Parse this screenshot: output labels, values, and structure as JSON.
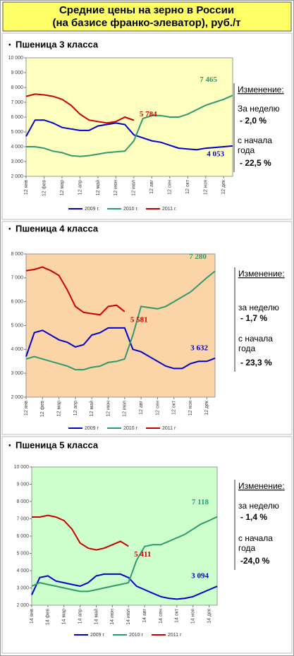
{
  "header": {
    "title": [
      "Средние цены на зерно в России",
      "(на базисе франко-элеватор), руб./т"
    ]
  },
  "chart_data": [
    {
      "type": "line",
      "title": "Пшеница 3 класса",
      "categories": [
        "12 янв",
        null,
        "12 фев",
        null,
        "12 мар",
        null,
        "12 апр",
        null,
        "12 май",
        null,
        "12 июн",
        null,
        "12 июл",
        null,
        "12 авг",
        null,
        "12 сен",
        null,
        "12 окт",
        null,
        "12 ноя",
        null,
        "12 дек",
        null
      ],
      "ylim": [
        2000,
        10000
      ],
      "yticks": [
        {
          "value": 2000,
          "label": "2 000"
        },
        {
          "value": 3000,
          "label": "3 000"
        },
        {
          "value": 4000,
          "label": "4 000"
        },
        {
          "value": 5000,
          "label": "5 000"
        },
        {
          "value": 6000,
          "label": "6 000"
        },
        {
          "value": 7000,
          "label": "7 000"
        },
        {
          "value": 8000,
          "label": "8 000"
        },
        {
          "value": 9000,
          "label": "9 000"
        },
        {
          "value": 10000,
          "label": "10 000"
        }
      ],
      "background": "#ffffc0",
      "series": [
        {
          "name": "2009 г.",
          "color": "#0000cc",
          "values": [
            4700,
            5800,
            5800,
            5600,
            5300,
            5200,
            5100,
            5100,
            5400,
            5500,
            5600,
            5500,
            4800,
            4600,
            4400,
            4300,
            4100,
            3900,
            3850,
            3800,
            3900,
            3950,
            4000,
            4053
          ],
          "end_label": "4 053"
        },
        {
          "name": "2010 г.",
          "color": "#2e9b6e",
          "values": [
            4000,
            4000,
            3900,
            3700,
            3600,
            3400,
            3350,
            3400,
            3500,
            3600,
            3650,
            3700,
            4400,
            5900,
            6100,
            6100,
            6000,
            6000,
            6200,
            6500,
            6800,
            7000,
            7200,
            7465
          ],
          "end_label": "7 465"
        },
        {
          "name": "2011 г.",
          "color": "#cc0000",
          "values": [
            7400,
            7550,
            7500,
            7400,
            7200,
            6800,
            6200,
            5800,
            5700,
            5600,
            5700,
            6000,
            5784,
            null,
            null,
            null,
            null,
            null,
            null,
            null,
            null,
            null,
            null,
            null
          ],
          "end_label": "5 784"
        }
      ],
      "note": {
        "heading": "Изменение:",
        "week_label": "За неделю",
        "week_value": "- 2,0  %",
        "ytd_label": [
          "с начала",
          "года"
        ],
        "ytd_value": "- 22,5 %"
      }
    },
    {
      "type": "line",
      "title": "Пшеница 4 класса",
      "categories": [
        "12 янв",
        null,
        "12 фев",
        null,
        "12 мар",
        null,
        "12 апр",
        null,
        "12 май",
        null,
        "12 июн",
        null,
        "12 июл",
        null,
        "12 авг",
        null,
        "12 сен",
        null,
        "12 окт",
        null,
        "12 ноя",
        null,
        "12 дек",
        null
      ],
      "ylim": [
        2000,
        8000
      ],
      "yticks": [
        {
          "value": 2000,
          "label": "2 000"
        },
        {
          "value": 3000,
          "label": "3 000"
        },
        {
          "value": 4000,
          "label": "4 000"
        },
        {
          "value": 5000,
          "label": "5 000"
        },
        {
          "value": 6000,
          "label": "6 000"
        },
        {
          "value": 7000,
          "label": "7 000"
        },
        {
          "value": 8000,
          "label": "8 000"
        }
      ],
      "background": "#fbd4a8",
      "series": [
        {
          "name": "2009 г",
          "color": "#0000cc",
          "values": [
            3700,
            4700,
            4800,
            4600,
            4400,
            4300,
            4100,
            4200,
            4600,
            4700,
            4900,
            4900,
            4900,
            4000,
            3900,
            3700,
            3500,
            3300,
            3200,
            3200,
            3400,
            3500,
            3500,
            3632
          ],
          "end_label": "3 632"
        },
        {
          "name": "2010 г",
          "color": "#2e9b6e",
          "values": [
            3600,
            3700,
            3600,
            3500,
            3400,
            3300,
            3150,
            3150,
            3250,
            3300,
            3450,
            3500,
            3600,
            4600,
            5800,
            5750,
            5700,
            5800,
            6000,
            6200,
            6400,
            6700,
            7000,
            7280
          ],
          "end_label": "7 280"
        },
        {
          "name": "2011 г",
          "color": "#cc0000",
          "values": [
            7300,
            7350,
            7450,
            7300,
            7100,
            6500,
            5800,
            5550,
            5500,
            5450,
            5800,
            5850,
            5581,
            null,
            null,
            null,
            null,
            null,
            null,
            null,
            null,
            null,
            null,
            null
          ],
          "end_label": "5 581"
        }
      ],
      "note": {
        "heading": "Изменение:",
        "week_label": "за  неделю",
        "week_value": "- 1,7  %",
        "ytd_label": [
          "с начала",
          "года"
        ],
        "ytd_value": "- 23,3 %"
      }
    },
    {
      "type": "line",
      "title": "Пшеница 5 класса",
      "categories": [
        "14 янв",
        null,
        "14 фев",
        null,
        "14 мар",
        null,
        "14 апр",
        null,
        "14 май",
        null,
        "14 июн",
        null,
        "14 июл",
        null,
        "14 авг",
        null,
        "14 сен",
        null,
        "14 окт",
        null,
        "14 ноя",
        null,
        "14 дек",
        null
      ],
      "ylim": [
        2000,
        10000
      ],
      "yticks": [
        {
          "value": 2000,
          "label": "2 000"
        },
        {
          "value": 3000,
          "label": "3 000"
        },
        {
          "value": 4000,
          "label": "4 000"
        },
        {
          "value": 5000,
          "label": "5 000"
        },
        {
          "value": 6000,
          "label": "6 000"
        },
        {
          "value": 7000,
          "label": "7 000"
        },
        {
          "value": 8000,
          "label": "8 000"
        },
        {
          "value": 9000,
          "label": "9 000"
        },
        {
          "value": 10000,
          "label": "10 000"
        }
      ],
      "background": "#ccffcc",
      "series": [
        {
          "name": "2009 г",
          "color": "#0000cc",
          "values": [
            2600,
            3600,
            3700,
            3400,
            3300,
            3200,
            3100,
            3300,
            3700,
            3800,
            3800,
            3800,
            3600,
            3100,
            2900,
            2700,
            2500,
            2400,
            2350,
            2400,
            2500,
            2700,
            2900,
            3094
          ],
          "end_label": "3 094"
        },
        {
          "name": "2010 г",
          "color": "#2e9b6e",
          "values": [
            3100,
            3300,
            3200,
            3100,
            3000,
            2900,
            2800,
            2800,
            2900,
            3000,
            3100,
            3200,
            3300,
            4600,
            5400,
            5500,
            5500,
            5700,
            5900,
            6100,
            6400,
            6700,
            6900,
            7118
          ],
          "end_label": "7 118"
        },
        {
          "name": "2011 г",
          "color": "#cc0000",
          "values": [
            7100,
            7100,
            7200,
            7100,
            6900,
            6400,
            5600,
            5300,
            5200,
            5300,
            5500,
            5700,
            5411,
            null,
            null,
            null,
            null,
            null,
            null,
            null,
            null,
            null,
            null,
            null
          ],
          "end_label": "5 411"
        }
      ],
      "note": {
        "heading": "Изменение:",
        "week_label": "за  неделю",
        "week_value": "- 1,4  %",
        "ytd_label": [
          "с начала",
          "года"
        ],
        "ytd_value": "-24,0  %"
      }
    }
  ]
}
